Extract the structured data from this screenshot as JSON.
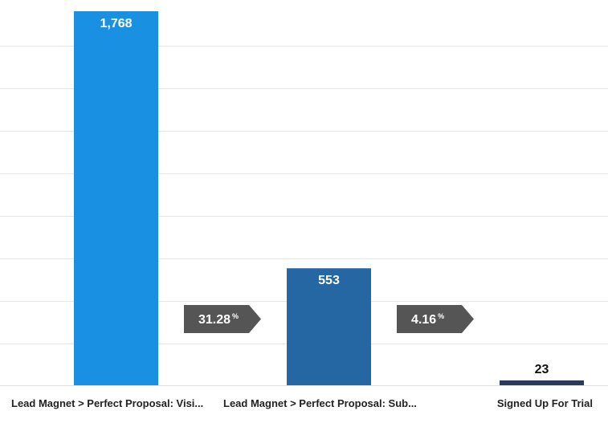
{
  "chart_data": {
    "type": "bar",
    "categories": [
      "Lead Magnet > Perfect Proposal: Visi...",
      "Lead Magnet > Perfect Proposal: Sub...",
      "Signed Up For Trial"
    ],
    "values": [
      1768,
      553,
      23
    ],
    "value_labels": [
      "1,768",
      "553",
      "23"
    ],
    "conversion_rates": [
      {
        "value": "31.28",
        "unit": "%"
      },
      {
        "value": "4.16",
        "unit": "%"
      }
    ],
    "ylim": [
      0,
      1768
    ],
    "grid": true,
    "colors": {
      "bars": [
        "#1a90e3",
        "#2467a3",
        "#293b5b"
      ],
      "conversion_badge": "#555555",
      "value_label_inside": "#ffffff",
      "value_label_outside": "#111111"
    }
  }
}
